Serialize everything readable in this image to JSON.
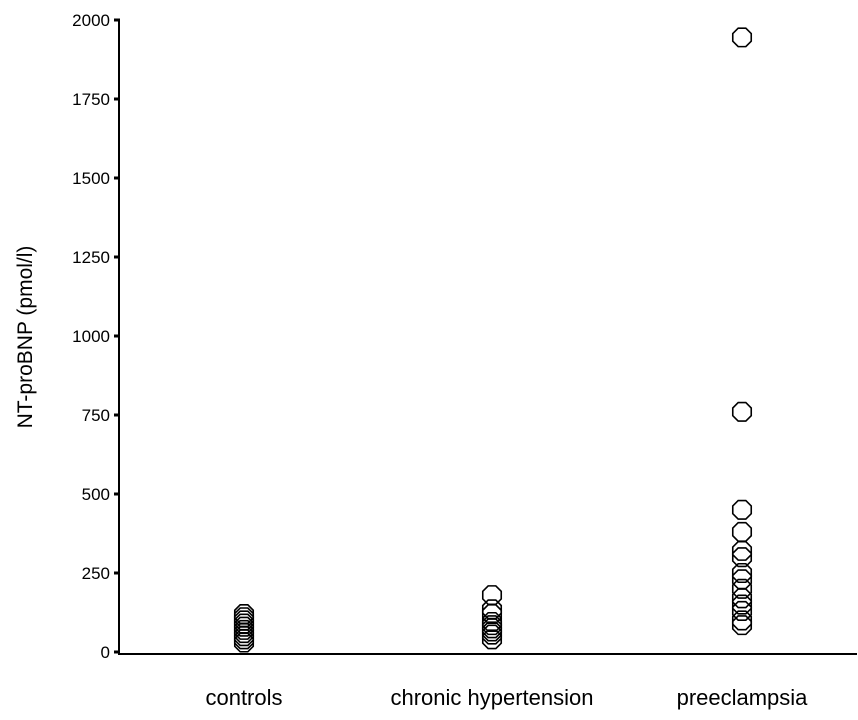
{
  "chart_data": {
    "type": "scatter",
    "title": "",
    "xlabel": "",
    "ylabel": "NT-proBNP (pmol/l)",
    "ylim": [
      0,
      2000
    ],
    "yticks": [
      0,
      250,
      500,
      750,
      1000,
      1250,
      1500,
      1750,
      2000
    ],
    "ytick_labels": [
      "0",
      "250",
      "500",
      "750",
      "1000",
      "1250",
      "1500",
      "1750",
      "2000"
    ],
    "categories": [
      "controls",
      "chronic hypertension",
      "preeclampsia"
    ],
    "grid": false,
    "marker": "open-octagon",
    "series": [
      {
        "values": [
          [
            0,
            30
          ],
          [
            0,
            40
          ],
          [
            0,
            50
          ],
          [
            0,
            60
          ],
          [
            0,
            70
          ],
          [
            0,
            80
          ],
          [
            0,
            90
          ],
          [
            0,
            100
          ],
          [
            0,
            110
          ],
          [
            0,
            120
          ]
        ]
      },
      {
        "values": [
          [
            1,
            40
          ],
          [
            1,
            55
          ],
          [
            1,
            65
          ],
          [
            1,
            75
          ],
          [
            1,
            85
          ],
          [
            1,
            95
          ],
          [
            1,
            120
          ],
          [
            1,
            135
          ],
          [
            1,
            180
          ]
        ]
      },
      {
        "values": [
          [
            2,
            85
          ],
          [
            2,
            100
          ],
          [
            2,
            130
          ],
          [
            2,
            150
          ],
          [
            2,
            170
          ],
          [
            2,
            200
          ],
          [
            2,
            230
          ],
          [
            2,
            250
          ],
          [
            2,
            300
          ],
          [
            2,
            320
          ],
          [
            2,
            380
          ],
          [
            2,
            450
          ],
          [
            2,
            760
          ],
          [
            2,
            1945
          ]
        ]
      }
    ]
  }
}
